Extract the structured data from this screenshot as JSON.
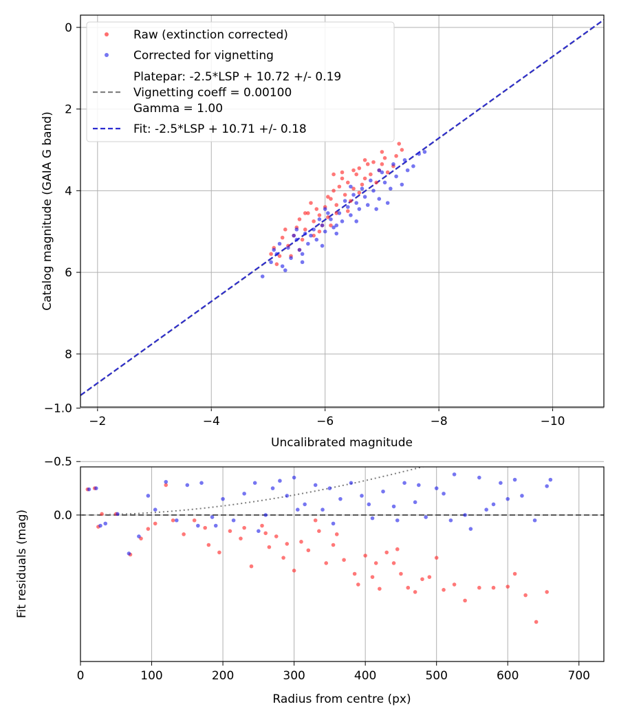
{
  "chart_data": [
    {
      "type": "scatter",
      "title": "",
      "xlabel": "Uncalibrated magnitude",
      "ylabel": "Catalog magnitude (GAIA G band)",
      "xlim": [
        -1.7,
        -10.9
      ],
      "ylim": [
        9.3,
        -0.3
      ],
      "xticks": [
        -2,
        -4,
        -6,
        -8,
        -10
      ],
      "xtick_labels": [
        "−2",
        "−4",
        "−6",
        "−8",
        "−10"
      ],
      "yticks": [
        0,
        2,
        4,
        6,
        8
      ],
      "ytick_labels": [
        "0",
        "2",
        "4",
        "6",
        "8"
      ],
      "grid": true,
      "legend_position": "top-left",
      "legend": {
        "raw": "Raw (extinction corrected)",
        "corrected": "Corrected for vignetting",
        "platepar_lines": [
          "Platepar: -2.5*LSP + 10.72 +/- 0.19",
          "Vignetting coeff = 0.00100",
          "Gamma = 1.00"
        ],
        "fit": "Fit: -2.5*LSP + 10.71 +/- 0.18"
      },
      "lines": {
        "platepar": {
          "slope": 1.0,
          "intercept": 10.72,
          "color": "#808080",
          "style": "dashed"
        },
        "fit": {
          "slope": 1.0,
          "intercept": 10.71,
          "color": "#2a2ad0",
          "style": "dashed"
        }
      },
      "series": [
        {
          "name": "Raw (extinction corrected)",
          "color": "#ff3030",
          "points": [
            [
              -5.1,
              5.4
            ],
            [
              -5.25,
              5.15
            ],
            [
              -5.3,
              4.95
            ],
            [
              -5.4,
              5.6
            ],
            [
              -5.5,
              4.9
            ],
            [
              -5.55,
              4.7
            ],
            [
              -5.6,
              5.2
            ],
            [
              -5.7,
              4.55
            ],
            [
              -5.8,
              4.75
            ],
            [
              -5.85,
              4.45
            ],
            [
              -5.9,
              5.0
            ],
            [
              -6.0,
              4.4
            ],
            [
              -6.05,
              4.65
            ],
            [
              -6.1,
              4.2
            ],
            [
              -6.15,
              4.0
            ],
            [
              -6.2,
              4.35
            ],
            [
              -6.25,
              3.9
            ],
            [
              -6.3,
              3.7
            ],
            [
              -6.35,
              4.1
            ],
            [
              -6.4,
              3.8
            ],
            [
              -6.5,
              3.95
            ],
            [
              -6.55,
              3.6
            ],
            [
              -6.6,
              3.45
            ],
            [
              -6.7,
              3.7
            ],
            [
              -6.75,
              3.35
            ],
            [
              -6.85,
              3.3
            ],
            [
              -6.95,
              3.5
            ],
            [
              -7.05,
              3.2
            ],
            [
              -7.2,
              3.4
            ],
            [
              -7.35,
              3.0
            ],
            [
              -5.2,
              5.6
            ],
            [
              -5.35,
              5.35
            ],
            [
              -5.45,
              5.1
            ],
            [
              -5.65,
              4.95
            ],
            [
              -5.75,
              4.3
            ],
            [
              -5.95,
              4.85
            ],
            [
              -6.05,
              4.15
            ],
            [
              -6.2,
              4.55
            ],
            [
              -6.3,
              3.55
            ],
            [
              -6.45,
              4.25
            ],
            [
              -6.65,
              3.85
            ],
            [
              -6.8,
              3.6
            ],
            [
              -7.0,
              3.05
            ],
            [
              -7.1,
              3.55
            ],
            [
              -7.25,
              3.15
            ],
            [
              -5.15,
              5.8
            ],
            [
              -5.55,
              5.45
            ],
            [
              -5.8,
              5.1
            ],
            [
              -6.1,
              4.85
            ],
            [
              -6.4,
              4.5
            ],
            [
              -6.6,
              4.05
            ],
            [
              -6.9,
              3.8
            ],
            [
              -5.05,
              5.55
            ],
            [
              -5.65,
              4.55
            ],
            [
              -6.15,
              3.6
            ],
            [
              -6.5,
              3.5
            ],
            [
              -6.7,
              3.25
            ],
            [
              -7.0,
              3.35
            ],
            [
              -7.3,
              2.85
            ],
            [
              -5.9,
              4.6
            ]
          ]
        },
        {
          "name": "Corrected for vignetting",
          "color": "#1a1ae8",
          "points": [
            [
              -4.9,
              6.1
            ],
            [
              -5.05,
              5.75
            ],
            [
              -5.15,
              5.55
            ],
            [
              -5.25,
              5.85
            ],
            [
              -5.35,
              5.4
            ],
            [
              -5.4,
              5.65
            ],
            [
              -5.5,
              5.2
            ],
            [
              -5.55,
              5.45
            ],
            [
              -5.65,
              5.05
            ],
            [
              -5.7,
              5.3
            ],
            [
              -5.8,
              4.95
            ],
            [
              -5.85,
              5.2
            ],
            [
              -5.95,
              4.85
            ],
            [
              -6.0,
              5.0
            ],
            [
              -6.1,
              4.7
            ],
            [
              -6.15,
              4.9
            ],
            [
              -6.25,
              4.55
            ],
            [
              -6.3,
              4.75
            ],
            [
              -6.4,
              4.4
            ],
            [
              -6.45,
              4.6
            ],
            [
              -6.55,
              4.3
            ],
            [
              -6.6,
              4.45
            ],
            [
              -6.7,
              4.15
            ],
            [
              -6.75,
              4.35
            ],
            [
              -6.85,
              4.0
            ],
            [
              -6.95,
              4.2
            ],
            [
              -7.05,
              3.8
            ],
            [
              -7.15,
              3.95
            ],
            [
              -7.25,
              3.65
            ],
            [
              -7.35,
              3.85
            ],
            [
              -7.45,
              3.5
            ],
            [
              -7.55,
              3.4
            ],
            [
              -7.65,
              3.1
            ],
            [
              -7.75,
              3.05
            ],
            [
              -5.2,
              5.3
            ],
            [
              -5.45,
              5.1
            ],
            [
              -5.6,
              5.55
            ],
            [
              -5.75,
              5.1
            ],
            [
              -5.9,
              4.7
            ],
            [
              -6.05,
              4.55
            ],
            [
              -6.2,
              4.85
            ],
            [
              -6.35,
              4.25
            ],
            [
              -6.5,
              4.1
            ],
            [
              -6.65,
              3.95
            ],
            [
              -6.8,
              3.75
            ],
            [
              -7.0,
              3.55
            ],
            [
              -7.2,
              3.35
            ],
            [
              -5.3,
              5.95
            ],
            [
              -5.6,
              5.75
            ],
            [
              -5.95,
              5.35
            ],
            [
              -6.2,
              5.05
            ],
            [
              -6.55,
              4.75
            ],
            [
              -6.9,
              4.45
            ],
            [
              -7.1,
              4.3
            ],
            [
              -5.1,
              5.45
            ],
            [
              -5.5,
              4.95
            ],
            [
              -6.0,
              4.45
            ],
            [
              -6.45,
              3.9
            ],
            [
              -6.95,
              3.5
            ],
            [
              -7.4,
              3.25
            ]
          ]
        }
      ]
    },
    {
      "type": "scatter",
      "title": "",
      "xlabel": "Radius from centre (px)",
      "ylabel": "Fit residuals (mag)",
      "xlim": [
        0,
        735
      ],
      "ylim": [
        1.37,
        -0.45
      ],
      "xticks": [
        0,
        100,
        200,
        300,
        400,
        500,
        600,
        700
      ],
      "xtick_labels": [
        "0",
        "100",
        "200",
        "300",
        "400",
        "500",
        "600",
        "700"
      ],
      "yticks": [
        0.0,
        -0.5,
        -1.0
      ],
      "ytick_labels": [
        "0.0",
        "−0.5",
        "−1.0"
      ],
      "grid": true,
      "reference_line": {
        "y": 0.0,
        "color": "#555555",
        "style": "dashed"
      },
      "vignetting_curve": {
        "coeff": 0.001,
        "color": "#7a7a7a",
        "style": "dotted"
      },
      "series": [
        {
          "name": "Raw (extinction corrected)",
          "color": "#ff3030",
          "points": [
            [
              10,
              -0.24
            ],
            [
              20,
              -0.25
            ],
            [
              25,
              0.11
            ],
            [
              30,
              -0.01
            ],
            [
              50,
              -0.01
            ],
            [
              70,
              0.37
            ],
            [
              85,
              0.22
            ],
            [
              95,
              0.13
            ],
            [
              105,
              0.08
            ],
            [
              120,
              -0.28
            ],
            [
              130,
              0.05
            ],
            [
              145,
              0.18
            ],
            [
              160,
              0.05
            ],
            [
              175,
              0.12
            ],
            [
              195,
              0.35
            ],
            [
              210,
              0.15
            ],
            [
              225,
              0.22
            ],
            [
              240,
              0.48
            ],
            [
              255,
              0.1
            ],
            [
              265,
              0.3
            ],
            [
              275,
              0.2
            ],
            [
              285,
              0.4
            ],
            [
              300,
              0.52
            ],
            [
              310,
              0.25
            ],
            [
              320,
              0.33
            ],
            [
              335,
              0.15
            ],
            [
              345,
              0.45
            ],
            [
              355,
              0.28
            ],
            [
              370,
              0.42
            ],
            [
              385,
              0.55
            ],
            [
              390,
              0.65
            ],
            [
              400,
              0.38
            ],
            [
              410,
              0.58
            ],
            [
              420,
              0.69
            ],
            [
              430,
              0.35
            ],
            [
              440,
              0.45
            ],
            [
              450,
              0.55
            ],
            [
              460,
              0.68
            ],
            [
              470,
              0.72
            ],
            [
              480,
              0.6
            ],
            [
              490,
              0.58
            ],
            [
              500,
              0.4
            ],
            [
              510,
              0.7
            ],
            [
              525,
              0.65
            ],
            [
              540,
              0.8
            ],
            [
              560,
              0.68
            ],
            [
              580,
              0.68
            ],
            [
              600,
              0.67
            ],
            [
              610,
              0.55
            ],
            [
              625,
              0.75
            ],
            [
              640,
              1.0
            ],
            [
              655,
              0.72
            ],
            [
              180,
              0.28
            ],
            [
              230,
              0.12
            ],
            [
              260,
              0.17
            ],
            [
              290,
              0.27
            ],
            [
              330,
              0.05
            ],
            [
              360,
              0.18
            ],
            [
              415,
              0.45
            ],
            [
              445,
              0.32
            ]
          ]
        },
        {
          "name": "Corrected for vignetting",
          "color": "#1a1ae8",
          "points": [
            [
              12,
              -0.24
            ],
            [
              22,
              -0.25
            ],
            [
              28,
              0.1
            ],
            [
              35,
              0.08
            ],
            [
              52,
              -0.01
            ],
            [
              68,
              0.36
            ],
            [
              82,
              0.2
            ],
            [
              95,
              -0.18
            ],
            [
              105,
              -0.05
            ],
            [
              120,
              -0.31
            ],
            [
              135,
              0.05
            ],
            [
              150,
              -0.28
            ],
            [
              165,
              0.1
            ],
            [
              170,
              -0.3
            ],
            [
              185,
              0.02
            ],
            [
              200,
              -0.15
            ],
            [
              215,
              0.05
            ],
            [
              230,
              -0.2
            ],
            [
              245,
              -0.3
            ],
            [
              260,
              0.0
            ],
            [
              270,
              -0.25
            ],
            [
              280,
              -0.32
            ],
            [
              290,
              -0.18
            ],
            [
              300,
              -0.35
            ],
            [
              315,
              -0.1
            ],
            [
              330,
              -0.28
            ],
            [
              340,
              -0.05
            ],
            [
              350,
              -0.25
            ],
            [
              365,
              -0.15
            ],
            [
              380,
              -0.3
            ],
            [
              395,
              -0.18
            ],
            [
              410,
              0.03
            ],
            [
              425,
              -0.22
            ],
            [
              440,
              -0.08
            ],
            [
              455,
              -0.3
            ],
            [
              470,
              -0.12
            ],
            [
              485,
              0.02
            ],
            [
              500,
              -0.25
            ],
            [
              520,
              0.05
            ],
            [
              525,
              -0.38
            ],
            [
              540,
              0.0
            ],
            [
              548,
              0.13
            ],
            [
              570,
              -0.05
            ],
            [
              580,
              -0.1
            ],
            [
              600,
              -0.15
            ],
            [
              610,
              -0.33
            ],
            [
              620,
              -0.18
            ],
            [
              638,
              0.05
            ],
            [
              655,
              -0.27
            ],
            [
              660,
              -0.33
            ],
            [
              190,
              0.1
            ],
            [
              250,
              0.15
            ],
            [
              305,
              -0.05
            ],
            [
              355,
              0.08
            ],
            [
              405,
              -0.1
            ],
            [
              445,
              0.05
            ],
            [
              475,
              -0.28
            ],
            [
              510,
              -0.2
            ],
            [
              560,
              -0.35
            ],
            [
              590,
              -0.3
            ]
          ]
        }
      ]
    }
  ]
}
